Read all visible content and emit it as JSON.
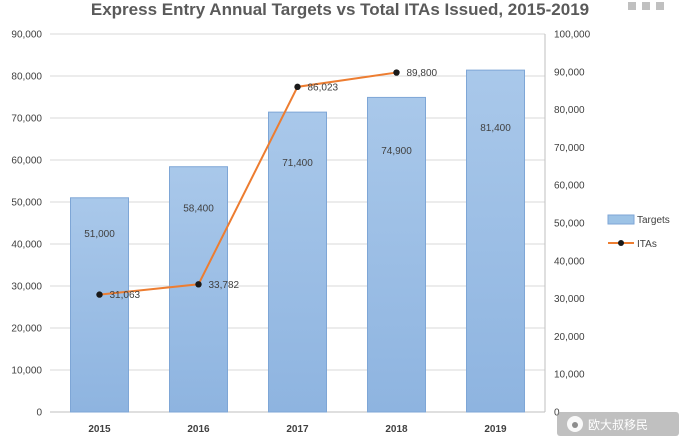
{
  "chart_data": {
    "type": "bar+line",
    "title": "Express Entry Annual Targets vs Total ITAs Issued, 2015-2019",
    "categories": [
      "2015",
      "2016",
      "2017",
      "2018",
      "2019"
    ],
    "series": [
      {
        "name": "Targets",
        "type": "bar",
        "axis": "left",
        "values": [
          51000,
          58400,
          71400,
          74900,
          81400
        ],
        "labels": [
          "51,000",
          "58,400",
          "71,400",
          "74,900",
          "81,400"
        ],
        "color": "#9dc3e6"
      },
      {
        "name": "ITAs",
        "type": "line",
        "axis": "right",
        "values": [
          31063,
          33782,
          86023,
          89800,
          null
        ],
        "labels": [
          "31,063",
          "33,782",
          "86,023",
          "89,800",
          null
        ],
        "color": "#ed7d31",
        "marker_color": "#1a1a1a"
      }
    ],
    "left_axis": {
      "ylim": [
        0,
        90000
      ],
      "ticks": [
        0,
        10000,
        20000,
        30000,
        40000,
        50000,
        60000,
        70000,
        80000,
        90000
      ],
      "tick_labels": [
        "0",
        "10,000",
        "20,000",
        "30,000",
        "40,000",
        "50,000",
        "60,000",
        "70,000",
        "80,000",
        "90,000"
      ]
    },
    "right_axis": {
      "ylim": [
        0,
        100000
      ],
      "ticks": [
        0,
        10000,
        20000,
        30000,
        40000,
        50000,
        60000,
        70000,
        80000,
        90000,
        100000
      ],
      "tick_labels": [
        "0",
        "10,000",
        "20,000",
        "30,000",
        "40,000",
        "50,000",
        "60,000",
        "70,000",
        "80,000",
        "90,000",
        "100,000"
      ]
    },
    "grid": true,
    "legend": {
      "placement": "right",
      "entries": [
        "Targets",
        "ITAs"
      ]
    }
  },
  "watermark": {
    "text": "欧大叔移民"
  }
}
